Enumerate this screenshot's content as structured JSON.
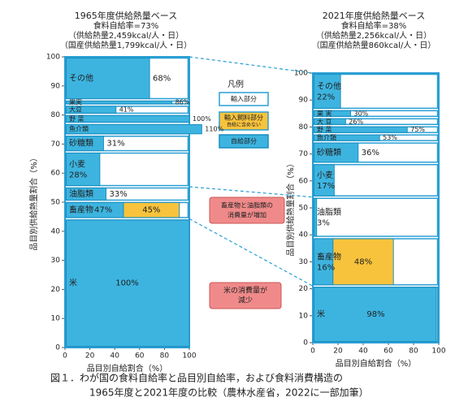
{
  "chart_data": [
    {
      "type": "mekko",
      "title": [
        "1965年度供給熱量ベース",
        "食料自給率=73%",
        "（供給熱量2,459kcal/人・日）",
        "（国産供給熱量1,799kcal/人・日）"
      ],
      "ylabel": "品目別供給熱量割合（%）",
      "xlabel": "品目別自給割合（%）",
      "ylim": [
        0,
        100
      ],
      "yticks": [
        0,
        10,
        20,
        30,
        40,
        50,
        60,
        70,
        80,
        90,
        100
      ],
      "xlim": [
        0,
        100
      ],
      "xticks": [
        0,
        20,
        40,
        60,
        80,
        100
      ],
      "categories": [
        "米",
        "畜産物",
        "油脂類",
        "小麦",
        "砂糖類",
        "魚介類",
        "野 菜",
        "大豆",
        "果実",
        "その他"
      ],
      "shares": [
        44.3,
        6,
        5,
        12,
        5.8,
        4,
        3.1,
        3.2,
        1.8,
        14.8
      ],
      "values": [
        100,
        47,
        33,
        28,
        31,
        110,
        100,
        41,
        86,
        68
      ],
      "value_labels": [
        "100%",
        "47%",
        "33%",
        "28%",
        "31%",
        "110%",
        "100%",
        "41%",
        "86%",
        "68%"
      ],
      "feed_values": [
        null,
        45,
        null,
        null,
        null,
        null,
        null,
        null,
        null,
        null
      ],
      "feed_labels": [
        null,
        "45%",
        null,
        null,
        null,
        null,
        null,
        null,
        null,
        null
      ]
    },
    {
      "type": "mekko",
      "title": [
        "2021年度供給熱量ベース",
        "食料自給率=38%",
        "（供給熱量2,256kcal/人・日）",
        "（国産供給熱量860kcal/人・日）"
      ],
      "ylabel": "品目別供給熱量割合（%）",
      "xlabel": "品目別自給割合（%）",
      "ylim": [
        0,
        100
      ],
      "yticks": [
        0,
        10,
        20,
        30,
        40,
        50,
        60,
        70,
        80,
        90,
        100
      ],
      "xlim": [
        0,
        100
      ],
      "xticks": [
        0,
        20,
        40,
        60,
        80,
        100
      ],
      "categories": [
        "米",
        "畜産物",
        "油脂類",
        "小麦",
        "砂糖類",
        "魚介類",
        "野 菜",
        "大 豆",
        "果 実",
        "その他"
      ],
      "shares": [
        21,
        18,
        15,
        12.5,
        8,
        3,
        3,
        3,
        3,
        13.5
      ],
      "values": [
        98,
        16,
        3,
        17,
        36,
        53,
        75,
        26,
        30,
        22
      ],
      "value_labels": [
        "98%",
        "16%",
        "3%",
        "17%",
        "36%",
        "53%",
        "75%",
        "26%",
        "30%",
        "22%"
      ],
      "feed_values": [
        null,
        48,
        null,
        null,
        null,
        null,
        null,
        null,
        null,
        null
      ],
      "feed_labels": [
        null,
        "48%",
        null,
        null,
        null,
        null,
        null,
        null,
        null,
        null
      ]
    }
  ],
  "legend": {
    "title": "凡例",
    "imported": "輸入部分",
    "feed": [
      "輸入飼料部分",
      "自給に含めない"
    ],
    "self": "自給部分"
  },
  "annotations": [
    [
      "畜産物と油脂類の",
      "消費量が増加"
    ],
    [
      "米の消費量が",
      "減少"
    ]
  ],
  "caption": [
    "図１．わが国の食料自給率と品目別自給率，および食料消費構造の",
    "1965年度と2021年度の比較（農林水産省，2022に一部加筆）"
  ]
}
